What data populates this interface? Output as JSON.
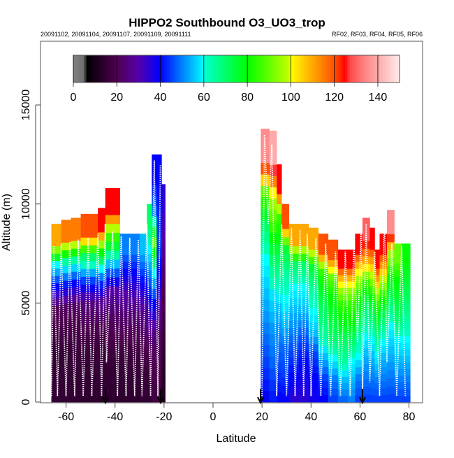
{
  "chart_data": {
    "type": "heatmap",
    "title": "HIPPO2 Southbound O3_UO3_trop",
    "subtitle_left": "20091102, 20091104, 20091107, 20091109, 20091111",
    "subtitle_right": "RF02, RF03, RF04, RF05, RF06",
    "xlabel": "Latitude",
    "ylabel": "Altitude (m)",
    "xlim": [
      -70.5,
      86.5
    ],
    "ylim": [
      0,
      18200
    ],
    "xticks": [
      "-60",
      "-40",
      "-20",
      "0",
      "20",
      "40",
      "60",
      "80"
    ],
    "xtick_values": [
      -60,
      -40,
      -20,
      0,
      20,
      40,
      60,
      80
    ],
    "yticks": [
      "0",
      "5000",
      "10000",
      "15000"
    ],
    "ytick_values": [
      0,
      5000,
      10000,
      15000
    ],
    "colorbar": {
      "ticks": [
        "0",
        "20",
        "40",
        "60",
        "80",
        "100",
        "120",
        "140"
      ],
      "tick_values": [
        0,
        20,
        40,
        60,
        80,
        100,
        120,
        140
      ],
      "range": [
        0,
        150
      ]
    },
    "columns_note": "each column: lat start, lat end, top altitude (m), O3 values in 8 equal altitude bins bottom to top",
    "columns": [
      {
        "lat": -66,
        "end": -62,
        "top": 9000,
        "o3": [
          15,
          15,
          15,
          18,
          20,
          40,
          60,
          110
        ]
      },
      {
        "lat": -62,
        "end": -58,
        "top": 9200,
        "o3": [
          15,
          15,
          15,
          18,
          22,
          42,
          65,
          115
        ]
      },
      {
        "lat": -58,
        "end": -54,
        "top": 9300,
        "o3": [
          15,
          15,
          16,
          18,
          22,
          40,
          65,
          115
        ]
      },
      {
        "lat": -54,
        "end": -50,
        "top": 9500,
        "o3": [
          14,
          15,
          16,
          20,
          25,
          45,
          70,
          120
        ]
      },
      {
        "lat": -50,
        "end": -47,
        "top": 9500,
        "o3": [
          14,
          15,
          16,
          20,
          25,
          45,
          70,
          120
        ]
      },
      {
        "lat": -47,
        "end": -44,
        "top": 9800,
        "o3": [
          14,
          15,
          16,
          20,
          28,
          50,
          80,
          125
        ]
      },
      {
        "lat": -44,
        "end": -41,
        "top": 10800,
        "o3": [
          14,
          15,
          18,
          22,
          30,
          55,
          85,
          125
        ]
      },
      {
        "lat": -41,
        "end": -38,
        "top": 10800,
        "o3": [
          14,
          15,
          18,
          22,
          30,
          55,
          85,
          125
        ]
      },
      {
        "lat": -38,
        "end": -34,
        "top": 8500,
        "o3": [
          14,
          15,
          16,
          20,
          24,
          30,
          40,
          50
        ]
      },
      {
        "lat": -34,
        "end": -30,
        "top": 8500,
        "o3": [
          14,
          15,
          16,
          20,
          24,
          32,
          40,
          50
        ]
      },
      {
        "lat": -30,
        "end": -27,
        "top": 8500,
        "o3": [
          15,
          16,
          18,
          22,
          26,
          35,
          45,
          55
        ]
      },
      {
        "lat": -27,
        "end": -25,
        "top": 10000,
        "o3": [
          15,
          16,
          20,
          30,
          40,
          50,
          60,
          70
        ]
      },
      {
        "lat": -25,
        "end": -23,
        "top": 12500,
        "o3": [
          18,
          20,
          25,
          40,
          60,
          90,
          50,
          40
        ]
      },
      {
        "lat": -23,
        "end": -21,
        "top": 12500,
        "o3": [
          18,
          20,
          22,
          30,
          40,
          45,
          42,
          40
        ]
      },
      {
        "lat": -21,
        "end": -19.5,
        "top": 11000,
        "o3": [
          12,
          12,
          15,
          18,
          20,
          25,
          30,
          35
        ]
      },
      {
        "lat": 19.5,
        "end": 23,
        "top": 13800,
        "o3": [
          40,
          45,
          50,
          55,
          60,
          70,
          90,
          135
        ]
      },
      {
        "lat": 23,
        "end": 26,
        "top": 13700,
        "o3": [
          42,
          48,
          52,
          58,
          70,
          85,
          100,
          140
        ]
      },
      {
        "lat": 26,
        "end": 28,
        "top": 12000,
        "o3": [
          40,
          45,
          50,
          55,
          65,
          75,
          85,
          125
        ]
      },
      {
        "lat": 28,
        "end": 31,
        "top": 10000,
        "o3": [
          40,
          45,
          48,
          55,
          60,
          65,
          75,
          120
        ]
      },
      {
        "lat": 31,
        "end": 35,
        "top": 9000,
        "o3": [
          35,
          40,
          45,
          50,
          55,
          60,
          70,
          110
        ]
      },
      {
        "lat": 35,
        "end": 39,
        "top": 9000,
        "o3": [
          35,
          38,
          42,
          48,
          55,
          60,
          70,
          110
        ]
      },
      {
        "lat": 39,
        "end": 43,
        "top": 8800,
        "o3": [
          38,
          40,
          45,
          55,
          60,
          65,
          75,
          110
        ]
      },
      {
        "lat": 43,
        "end": 47,
        "top": 8500,
        "o3": [
          40,
          45,
          55,
          65,
          70,
          75,
          85,
          120
        ]
      },
      {
        "lat": 47,
        "end": 51,
        "top": 8200,
        "o3": [
          45,
          50,
          60,
          70,
          75,
          80,
          90,
          120
        ]
      },
      {
        "lat": 51,
        "end": 55,
        "top": 7700,
        "o3": [
          48,
          55,
          65,
          70,
          78,
          85,
          100,
          125
        ]
      },
      {
        "lat": 55,
        "end": 58,
        "top": 7700,
        "o3": [
          50,
          55,
          60,
          70,
          80,
          85,
          100,
          125
        ]
      },
      {
        "lat": 58,
        "end": 61,
        "top": 8500,
        "o3": [
          45,
          50,
          60,
          65,
          75,
          85,
          100,
          125
        ]
      },
      {
        "lat": 61,
        "end": 64,
        "top": 9300,
        "o3": [
          45,
          50,
          55,
          62,
          70,
          85,
          110,
          130
        ]
      },
      {
        "lat": 64,
        "end": 66,
        "top": 8800,
        "o3": [
          45,
          50,
          55,
          62,
          72,
          85,
          105,
          125
        ]
      },
      {
        "lat": 66,
        "end": 68,
        "top": 7700,
        "o3": [
          45,
          50,
          58,
          65,
          75,
          85,
          105,
          125
        ]
      },
      {
        "lat": 68,
        "end": 71,
        "top": 8500,
        "o3": [
          45,
          50,
          55,
          62,
          72,
          85,
          105,
          125
        ]
      },
      {
        "lat": 71,
        "end": 74,
        "top": 9700,
        "o3": [
          45,
          50,
          55,
          60,
          70,
          80,
          95,
          135
        ]
      },
      {
        "lat": 74,
        "end": 77,
        "top": 8000,
        "o3": [
          45,
          50,
          55,
          60,
          70,
          75,
          80,
          90
        ]
      },
      {
        "lat": 77,
        "end": 80.5,
        "top": 8000,
        "o3": [
          45,
          50,
          55,
          60,
          65,
          70,
          75,
          80
        ]
      }
    ],
    "flight_track_left": [
      [
        -66,
        300
      ],
      [
        -65,
        7900
      ],
      [
        -63.5,
        300
      ],
      [
        -62,
        8000
      ],
      [
        -60,
        300
      ],
      [
        -58.5,
        8100
      ],
      [
        -56.5,
        300
      ],
      [
        -55,
        8200
      ],
      [
        -53,
        300
      ],
      [
        -51,
        8300
      ],
      [
        -49.5,
        300
      ],
      [
        -47,
        8500
      ],
      [
        -45.5,
        300
      ],
      [
        -44,
        9000
      ],
      [
        -43.5,
        2000
      ],
      [
        -41,
        8600
      ],
      [
        -39,
        300
      ],
      [
        -37.5,
        8400
      ],
      [
        -35.5,
        300
      ],
      [
        -34,
        8300
      ],
      [
        -32,
        300
      ],
      [
        -30.5,
        8200
      ],
      [
        -29,
        300
      ],
      [
        -27,
        9000
      ],
      [
        -25.5,
        300
      ],
      [
        -24,
        12200
      ],
      [
        -22.5,
        300
      ],
      [
        -21.5,
        12000
      ]
    ],
    "flight_track_right": [
      [
        20,
        300
      ],
      [
        21,
        13500
      ],
      [
        22.5,
        9000
      ],
      [
        24,
        13000
      ],
      [
        26,
        300
      ],
      [
        28,
        9000
      ],
      [
        30,
        300
      ],
      [
        32,
        8800
      ],
      [
        33.5,
        300
      ],
      [
        35.5,
        8700
      ],
      [
        37,
        300
      ],
      [
        38.5,
        8500
      ],
      [
        40,
        300
      ],
      [
        42,
        8300
      ],
      [
        44,
        300
      ],
      [
        46,
        8000
      ],
      [
        48,
        300
      ],
      [
        50,
        7600
      ],
      [
        52,
        300
      ],
      [
        54,
        7600
      ],
      [
        56,
        300
      ],
      [
        57.5,
        8300
      ],
      [
        59,
        3000
      ],
      [
        60.5,
        9100
      ],
      [
        61,
        300
      ],
      [
        62.5,
        9000
      ],
      [
        64,
        1000
      ],
      [
        66,
        7600
      ],
      [
        68,
        300
      ],
      [
        70,
        9500
      ],
      [
        71,
        2000
      ],
      [
        73,
        8000
      ],
      [
        75,
        300
      ],
      [
        77,
        7900
      ],
      [
        78.5,
        300
      ]
    ],
    "arrow_latitudes": [
      -43.9,
      -21.4,
      19.4,
      61
    ]
  }
}
